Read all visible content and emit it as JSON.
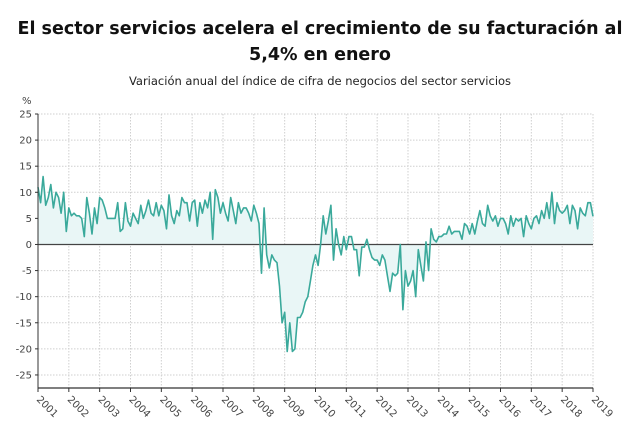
{
  "chart_data": {
    "type": "area",
    "title": "El sector servicios acelera el crecimiento de su facturación al 5,4% en enero",
    "subtitle": "Variación anual del índice de cifra de negocios del sector servicios",
    "ylabel": "%",
    "xlabel": "",
    "ylim": [
      -27.5,
      25
    ],
    "yticks": [
      25,
      20,
      15,
      10,
      5,
      0,
      -5,
      -10,
      -15,
      -20,
      -25
    ],
    "xticks": [
      "2001",
      "2002",
      "2003",
      "2004",
      "2005",
      "2006",
      "2007",
      "2008",
      "2009",
      "2010",
      "2011",
      "2012",
      "2013",
      "2014",
      "2015",
      "2016",
      "2017",
      "2018",
      "2019"
    ],
    "xlim": [
      "2001-01",
      "2019-01"
    ],
    "frequency": "monthly",
    "grid": true,
    "line_color": "#3aa99b",
    "fill_color": "#e9f6f6",
    "values_by_year": {
      "2001": [
        11,
        8,
        13,
        7.5,
        9,
        11.5,
        7,
        10,
        9,
        6,
        10,
        2.5
      ],
      "2002": [
        7,
        5.5,
        6,
        5.5,
        5.5,
        5,
        1.5,
        9,
        6,
        2,
        7,
        4
      ],
      "2003": [
        9,
        8.5,
        7,
        5,
        5,
        5,
        5,
        8,
        2.5,
        3,
        8,
        4.5
      ],
      "2004": [
        3.5,
        6,
        5,
        4,
        7.5,
        5,
        6.5,
        8.5,
        6,
        5.5,
        8,
        5.5
      ],
      "2005": [
        7.5,
        6.5,
        3,
        9.5,
        5.5,
        4,
        6.5,
        5.5,
        9,
        8,
        8,
        4.5
      ],
      "2006": [
        8,
        8.5,
        3.5,
        8,
        6,
        8.5,
        7,
        10,
        1,
        10.5,
        9,
        6
      ],
      "2007": [
        8,
        6,
        4.5,
        9,
        6.5,
        4,
        8,
        6,
        7,
        7,
        6,
        4.5
      ],
      "2008": [
        7.5,
        6,
        4,
        -5.5,
        7,
        -2,
        -4.5,
        -2,
        -3,
        -3.5,
        -8,
        -15
      ],
      "2009": [
        -13,
        -20.5,
        -15,
        -20.5,
        -20,
        -14,
        -14,
        -13,
        -11,
        -10,
        -7,
        -4
      ],
      "2010": [
        -2,
        -4,
        0,
        5.5,
        2,
        4.5,
        7.5,
        -3,
        3,
        0,
        -2,
        1.5
      ],
      "2011": [
        -1,
        1.5,
        1.5,
        -1,
        -1,
        -6,
        -0.5,
        -0.5,
        1,
        -1,
        -2.5,
        -3
      ],
      "2012": [
        -3,
        -4,
        -2,
        -3,
        -6,
        -9,
        -5.5,
        -6,
        -5.5,
        0,
        -12.5,
        -5
      ],
      "2013": [
        -8,
        -7,
        -5,
        -10,
        -1,
        -4,
        -7,
        0.5,
        -5,
        3,
        1,
        0.5
      ],
      "2014": [
        1.5,
        1.5,
        2,
        2,
        3.5,
        2,
        2.5,
        2.5,
        2.5,
        1,
        4,
        3.5
      ],
      "2015": [
        2,
        4,
        2,
        4.5,
        6.5,
        4,
        3.5,
        7.5,
        5.5,
        4.5,
        5.5,
        3.5
      ],
      "2016": [
        5,
        5,
        4,
        2,
        5.5,
        3.5,
        5,
        4.5,
        5,
        1.5,
        5.5,
        4
      ],
      "2017": [
        3,
        5,
        5.5,
        4,
        6.5,
        5,
        8,
        5,
        10,
        4,
        8,
        6.5
      ],
      "2018": [
        6,
        6.5,
        7.5,
        4,
        7.5,
        6.5,
        3,
        7,
        6,
        5.5,
        8,
        8
      ],
      "2019": [
        5.4
      ]
    }
  }
}
